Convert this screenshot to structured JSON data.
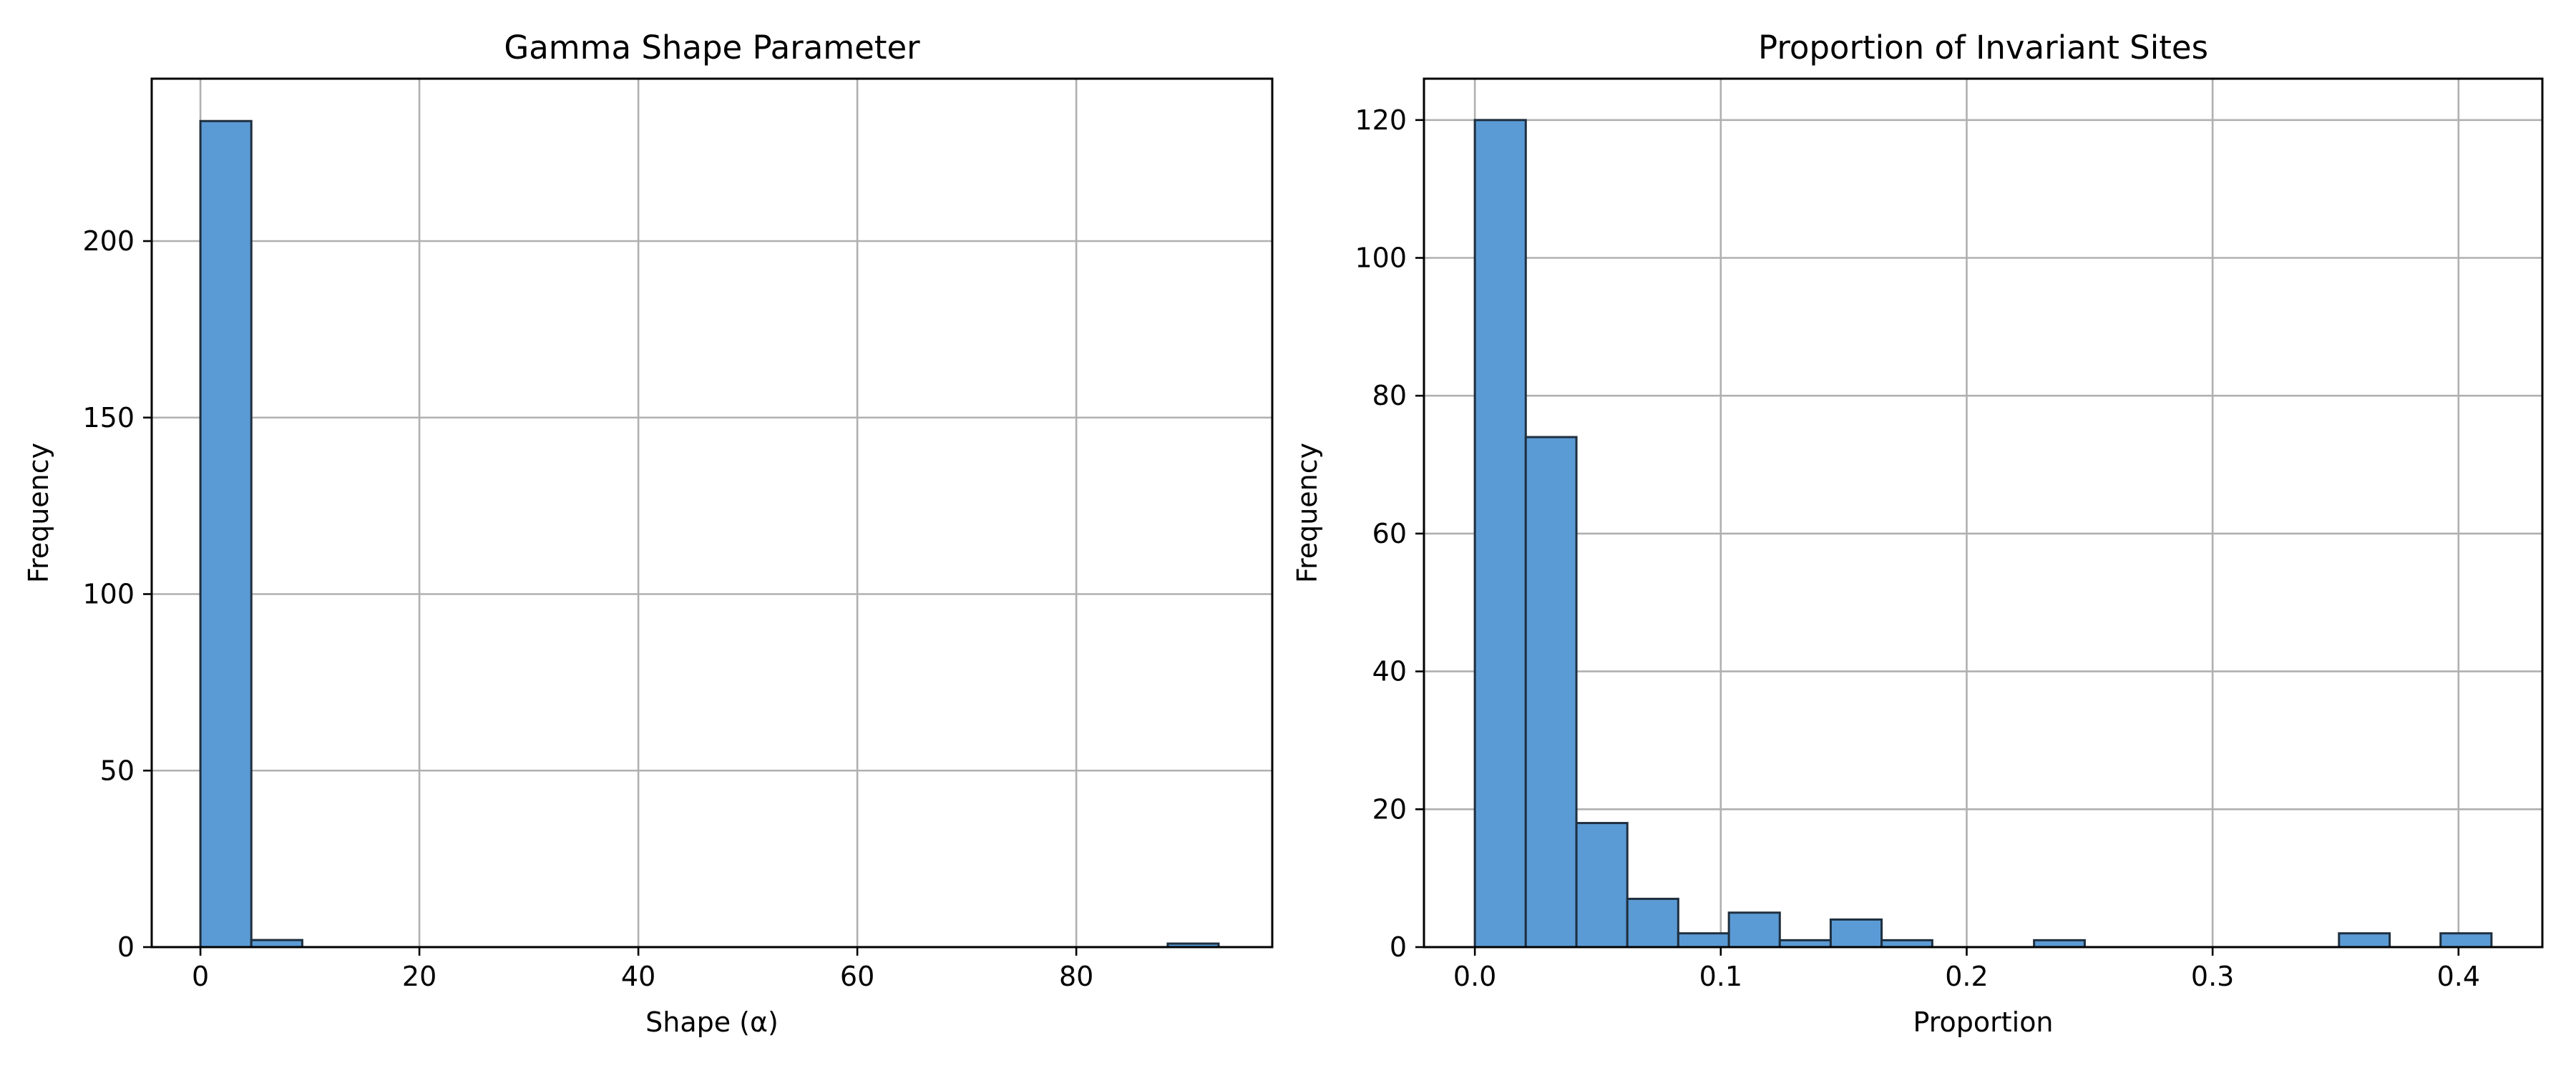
{
  "chart_data": [
    {
      "type": "bar",
      "title": "Gamma Shape Parameter",
      "xlabel": "Shape (α)",
      "ylabel": "Frequency",
      "xlim": [
        -4.45,
        97.9
      ],
      "ylim": [
        0,
        246
      ],
      "xticks": [
        0,
        20,
        40,
        60,
        80
      ],
      "yticks": [
        0,
        50,
        100,
        150,
        200
      ],
      "grid": true,
      "bar_color": "#5b9bd5",
      "edge_color": "#1f2f3f",
      "bins": [
        {
          "x0": 0.0,
          "x1": 4.65,
          "value": 234
        },
        {
          "x0": 4.65,
          "x1": 9.3,
          "value": 2
        },
        {
          "x0": 9.3,
          "x1": 13.95,
          "value": 0
        },
        {
          "x0": 13.95,
          "x1": 18.6,
          "value": 0
        },
        {
          "x0": 18.6,
          "x1": 23.25,
          "value": 0
        },
        {
          "x0": 23.25,
          "x1": 27.9,
          "value": 0
        },
        {
          "x0": 27.9,
          "x1": 32.55,
          "value": 0
        },
        {
          "x0": 32.55,
          "x1": 37.2,
          "value": 0
        },
        {
          "x0": 37.2,
          "x1": 41.85,
          "value": 0
        },
        {
          "x0": 41.85,
          "x1": 46.5,
          "value": 0
        },
        {
          "x0": 46.5,
          "x1": 51.15,
          "value": 0
        },
        {
          "x0": 51.15,
          "x1": 55.8,
          "value": 0
        },
        {
          "x0": 55.8,
          "x1": 60.45,
          "value": 0
        },
        {
          "x0": 60.45,
          "x1": 65.1,
          "value": 0
        },
        {
          "x0": 65.1,
          "x1": 69.75,
          "value": 0
        },
        {
          "x0": 69.75,
          "x1": 74.4,
          "value": 0
        },
        {
          "x0": 74.4,
          "x1": 79.05,
          "value": 0
        },
        {
          "x0": 79.05,
          "x1": 83.7,
          "value": 0
        },
        {
          "x0": 83.7,
          "x1": 88.35,
          "value": 0
        },
        {
          "x0": 88.35,
          "x1": 93.0,
          "value": 1
        }
      ]
    },
    {
      "type": "bar",
      "title": "Proportion of Invariant Sites",
      "xlabel": "Proportion",
      "ylabel": "Frequency",
      "xlim": [
        -0.0207,
        0.4341
      ],
      "ylim": [
        0,
        126
      ],
      "xticks": [
        0.0,
        0.1,
        0.2,
        0.3,
        0.4
      ],
      "xtick_labels": [
        "0.0",
        "0.1",
        "0.2",
        "0.3",
        "0.4"
      ],
      "yticks": [
        0,
        20,
        40,
        60,
        80,
        100,
        120
      ],
      "grid": true,
      "bar_color": "#5b9bd5",
      "edge_color": "#1f2f3f",
      "bins": [
        {
          "x0": 0.0,
          "x1": 0.0207,
          "value": 120
        },
        {
          "x0": 0.0207,
          "x1": 0.0413,
          "value": 74
        },
        {
          "x0": 0.0413,
          "x1": 0.062,
          "value": 18
        },
        {
          "x0": 0.062,
          "x1": 0.0827,
          "value": 7
        },
        {
          "x0": 0.0827,
          "x1": 0.1033,
          "value": 2
        },
        {
          "x0": 0.1033,
          "x1": 0.124,
          "value": 5
        },
        {
          "x0": 0.124,
          "x1": 0.1447,
          "value": 1
        },
        {
          "x0": 0.1447,
          "x1": 0.1654,
          "value": 4
        },
        {
          "x0": 0.1654,
          "x1": 0.186,
          "value": 1
        },
        {
          "x0": 0.186,
          "x1": 0.2067,
          "value": 0
        },
        {
          "x0": 0.2067,
          "x1": 0.2274,
          "value": 0
        },
        {
          "x0": 0.2274,
          "x1": 0.248,
          "value": 1
        },
        {
          "x0": 0.248,
          "x1": 0.2687,
          "value": 0
        },
        {
          "x0": 0.2687,
          "x1": 0.2894,
          "value": 0
        },
        {
          "x0": 0.2894,
          "x1": 0.31,
          "value": 0
        },
        {
          "x0": 0.31,
          "x1": 0.3307,
          "value": 0
        },
        {
          "x0": 0.3307,
          "x1": 0.3514,
          "value": 0
        },
        {
          "x0": 0.3514,
          "x1": 0.372,
          "value": 2
        },
        {
          "x0": 0.372,
          "x1": 0.3927,
          "value": 0
        },
        {
          "x0": 0.3927,
          "x1": 0.4134,
          "value": 2
        }
      ]
    }
  ]
}
